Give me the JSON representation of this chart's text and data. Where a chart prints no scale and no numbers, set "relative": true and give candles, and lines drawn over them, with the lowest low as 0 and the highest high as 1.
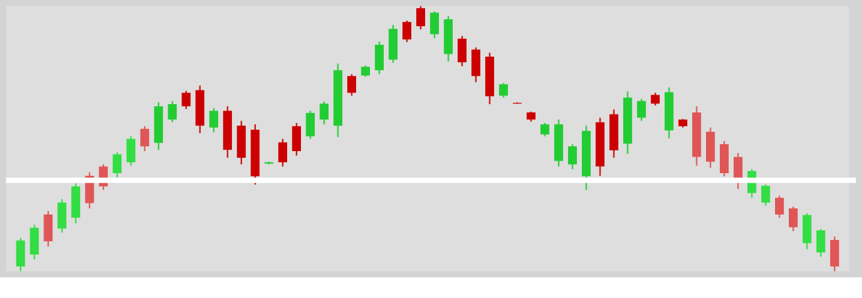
{
  "chart_data": {
    "type": "candlestick",
    "relative": true,
    "categories": [
      null,
      null,
      null,
      null,
      null,
      null,
      null,
      null,
      null,
      null,
      null,
      null,
      null,
      null,
      null,
      null,
      null,
      null,
      null,
      null,
      null,
      null,
      null,
      null,
      null,
      null,
      null,
      null,
      null,
      null,
      null,
      null,
      null,
      null,
      null,
      null,
      null,
      null,
      null,
      null,
      null,
      null,
      null,
      null,
      null,
      null,
      null,
      null,
      null,
      null,
      null,
      null,
      null,
      null,
      null,
      null,
      null,
      null,
      null,
      null
    ],
    "ohlc": [
      [
        0.018,
        0.126,
        0,
        0.116
      ],
      [
        0.063,
        0.176,
        0.045,
        0.164
      ],
      [
        0.214,
        0.227,
        0.093,
        0.113
      ],
      [
        0.161,
        0.272,
        0.146,
        0.259
      ],
      [
        0.202,
        0.332,
        0.181,
        0.32
      ],
      [
        0.36,
        0.373,
        0.237,
        0.257
      ],
      [
        0.395,
        0.403,
        0.307,
        0.32
      ],
      [
        0.37,
        0.448,
        0.353,
        0.441
      ],
      [
        0.411,
        0.509,
        0.398,
        0.499
      ],
      [
        0.537,
        0.547,
        0.453,
        0.471
      ],
      [
        0.484,
        0.637,
        0.458,
        0.622
      ],
      [
        0.572,
        0.642,
        0.562,
        0.63
      ],
      [
        0.673,
        0.68,
        0.612,
        0.622
      ],
      [
        0.683,
        0.7,
        0.521,
        0.549
      ],
      [
        0.542,
        0.615,
        0.524,
        0.605
      ],
      [
        0.605,
        0.622,
        0.428,
        0.458
      ],
      [
        0.549,
        0.567,
        0.403,
        0.428
      ],
      [
        0.534,
        0.554,
        0.327,
        0.358
      ],
      [
        0.406,
        0.413,
        0.403,
        0.411
      ],
      [
        0.486,
        0.499,
        0.395,
        0.411
      ],
      [
        0.547,
        0.559,
        0.436,
        0.453
      ],
      [
        0.509,
        0.605,
        0.499,
        0.597
      ],
      [
        0.572,
        0.64,
        0.554,
        0.632
      ],
      [
        0.549,
        0.783,
        0.506,
        0.758
      ],
      [
        0.736,
        0.743,
        0.662,
        0.673
      ],
      [
        0.738,
        0.776,
        0.733,
        0.771
      ],
      [
        0.758,
        0.866,
        0.743,
        0.854
      ],
      [
        0.798,
        0.929,
        0.786,
        0.914
      ],
      [
        0.94,
        0.945,
        0.864,
        0.874
      ],
      [
        0.992,
        1,
        0.912,
        0.924
      ],
      [
        0.894,
        0.98,
        0.879,
        0.975
      ],
      [
        0.819,
        0.962,
        0.791,
        0.95
      ],
      [
        0.877,
        0.887,
        0.773,
        0.788
      ],
      [
        0.836,
        0.844,
        0.713,
        0.736
      ],
      [
        0.809,
        0.824,
        0.63,
        0.66
      ],
      [
        0.662,
        0.71,
        0.655,
        0.705
      ],
      [
        0.635,
        0.637,
        0.632,
        0.632
      ],
      [
        0.599,
        0.602,
        0.564,
        0.572
      ],
      [
        0.516,
        0.559,
        0.509,
        0.554
      ],
      [
        0.416,
        0.572,
        0.395,
        0.554
      ],
      [
        0.403,
        0.479,
        0.385,
        0.471
      ],
      [
        0.358,
        0.549,
        0.307,
        0.529
      ],
      [
        0.562,
        0.579,
        0.36,
        0.395
      ],
      [
        0.592,
        0.61,
        0.428,
        0.456
      ],
      [
        0.481,
        0.678,
        0.443,
        0.655
      ],
      [
        0.579,
        0.65,
        0.567,
        0.642
      ],
      [
        0.665,
        0.673,
        0.625,
        0.632
      ],
      [
        0.531,
        0.693,
        0.501,
        0.675
      ],
      [
        0.572,
        0.574,
        0.542,
        0.547
      ],
      [
        0.599,
        0.622,
        0.398,
        0.431
      ],
      [
        0.526,
        0.542,
        0.39,
        0.413
      ],
      [
        0.479,
        0.491,
        0.358,
        0.37
      ],
      [
        0.431,
        0.446,
        0.31,
        0.335
      ],
      [
        0.295,
        0.385,
        0.277,
        0.378
      ],
      [
        0.259,
        0.327,
        0.247,
        0.322
      ],
      [
        0.277,
        0.285,
        0.202,
        0.214
      ],
      [
        0.237,
        0.244,
        0.151,
        0.166
      ],
      [
        0.106,
        0.219,
        0.083,
        0.212
      ],
      [
        0.071,
        0.159,
        0.055,
        0.154
      ],
      [
        0.118,
        0.131,
        0,
        0.018
      ]
    ],
    "colors": [
      "#33dd44",
      "#33dd44",
      "#e05555",
      "#33dd44",
      "#33dd44",
      "#e05555",
      "#e05555",
      "#33dd44",
      "#33dd44",
      "#e05555",
      "#22cc33",
      "#22cc33",
      "#cc0000",
      "#cc0000",
      "#22cc33",
      "#cc0000",
      "#cc0000",
      "#cc0000",
      "#22cc33",
      "#cc0000",
      "#cc0000",
      "#22cc33",
      "#22cc33",
      "#22cc33",
      "#cc0000",
      "#22cc33",
      "#22cc33",
      "#22cc33",
      "#cc0000",
      "#cc0000",
      "#22cc33",
      "#22cc33",
      "#cc0000",
      "#cc0000",
      "#cc0000",
      "#22cc33",
      "#cc0000",
      "#cc0000",
      "#22cc33",
      "#22cc33",
      "#22cc33",
      "#22cc33",
      "#cc0000",
      "#cc0000",
      "#22cc33",
      "#22cc33",
      "#cc0000",
      "#22cc33",
      "#cc0000",
      "#e05555",
      "#e05555",
      "#e05555",
      "#e05555",
      "#33dd44",
      "#33dd44",
      "#e05555",
      "#e05555",
      "#33dd44",
      "#33dd44",
      "#e05555"
    ],
    "ref_lines": [
      {
        "axis": "y",
        "value": 0.343,
        "color": "#ffffff"
      }
    ]
  }
}
